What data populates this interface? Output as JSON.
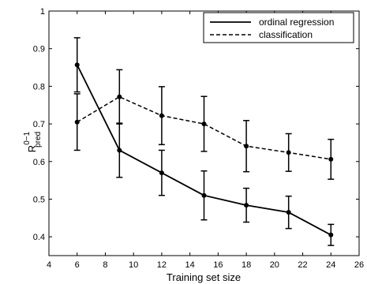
{
  "chart_data": {
    "type": "line",
    "xlabel": "Training set size",
    "ylabel": {
      "base": "R",
      "sup": "0−1",
      "sub": "pred"
    },
    "xlim": [
      4,
      26
    ],
    "ylim": [
      0.35,
      1.0
    ],
    "xticks": [
      4,
      6,
      8,
      10,
      12,
      14,
      16,
      18,
      20,
      22,
      24,
      26
    ],
    "yticks": [
      0.4,
      0.5,
      0.6,
      0.7,
      0.8,
      0.9,
      1
    ],
    "grid": false,
    "legend_position": "top-right",
    "x": [
      6,
      9,
      12,
      15,
      18,
      21,
      24
    ],
    "series": [
      {
        "name": "ordinal regression",
        "line_style": "solid",
        "color": "#000000",
        "values": [
          0.857,
          0.63,
          0.57,
          0.51,
          0.484,
          0.465,
          0.405
        ],
        "error": [
          0.072,
          0.072,
          0.06,
          0.065,
          0.045,
          0.043,
          0.028
        ]
      },
      {
        "name": "classification",
        "line_style": "dashed",
        "color": "#000000",
        "values": [
          0.705,
          0.772,
          0.722,
          0.7,
          0.641,
          0.624,
          0.606
        ],
        "error": [
          0.075,
          0.072,
          0.077,
          0.073,
          0.068,
          0.05,
          0.053
        ]
      }
    ]
  }
}
